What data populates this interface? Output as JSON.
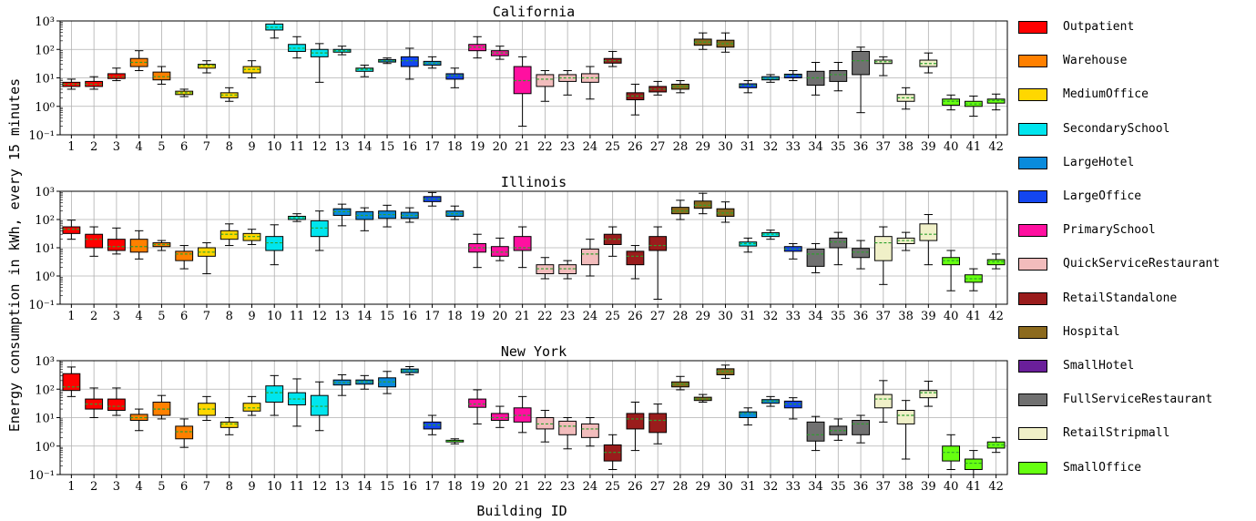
{
  "chart_data": {
    "type": "box",
    "ylabel": "Energy consumption in kWh, every 15 minutes",
    "xlabel": "Building ID",
    "yscale": "log",
    "ylim": [
      0.1,
      1000
    ],
    "y_tick_labels": [
      "10⁻¹",
      "10⁰",
      "10¹",
      "10²",
      "10³"
    ],
    "grid": true,
    "legend_position": "right",
    "x_categories": [
      "1",
      "2",
      "3",
      "4",
      "5",
      "6",
      "7",
      "8",
      "9",
      "10",
      "11",
      "12",
      "13",
      "14",
      "15",
      "16",
      "17",
      "18",
      "19",
      "20",
      "21",
      "22",
      "23",
      "24",
      "25",
      "26",
      "27",
      "28",
      "29",
      "30",
      "31",
      "32",
      "33",
      "34",
      "35",
      "36",
      "37",
      "38",
      "39",
      "40",
      "41",
      "42"
    ],
    "legend": [
      {
        "label": "Outpatient",
        "color": "#ff0000"
      },
      {
        "label": "Warehouse",
        "color": "#ff8000"
      },
      {
        "label": "MediumOffice",
        "color": "#ffd700"
      },
      {
        "label": "SecondarySchool",
        "color": "#00e5ee"
      },
      {
        "label": "LargeHotel",
        "color": "#0a8bdc"
      },
      {
        "label": "LargeOffice",
        "color": "#1346f0"
      },
      {
        "label": "PrimarySchool",
        "color": "#ff10a0"
      },
      {
        "label": "QuickServiceRestaurant",
        "color": "#f2bcbc"
      },
      {
        "label": "RetailStandalone",
        "color": "#9a1c1c"
      },
      {
        "label": "Hospital",
        "color": "#8c6a1e"
      },
      {
        "label": "SmallHotel",
        "color": "#6a1f9a"
      },
      {
        "label": "FullServiceRestaurant",
        "color": "#707070"
      },
      {
        "label": "RetailStripmall",
        "color": "#f0f0c8"
      },
      {
        "label": "SmallOffice",
        "color": "#66ff10"
      }
    ],
    "panels": [
      {
        "title": "California",
        "types": [
          0,
          0,
          0,
          1,
          1,
          2,
          2,
          2,
          2,
          3,
          3,
          3,
          3,
          3,
          4,
          5,
          4,
          5,
          6,
          6,
          6,
          7,
          7,
          7,
          8,
          8,
          8,
          9,
          9,
          9,
          5,
          4,
          5,
          11,
          11,
          11,
          12,
          12,
          12,
          13,
          13,
          13
        ],
        "boxes": [
          [
            4,
            5,
            6,
            7,
            9
          ],
          [
            4,
            5,
            6,
            7.5,
            11
          ],
          [
            8,
            9.5,
            11,
            14,
            22
          ],
          [
            18,
            25,
            35,
            48,
            90
          ],
          [
            6,
            8.5,
            11,
            16,
            25
          ],
          [
            2.2,
            2.6,
            3,
            3.4,
            4
          ],
          [
            15,
            22,
            27,
            30,
            40
          ],
          [
            1.5,
            2,
            2.5,
            3,
            4.5
          ],
          [
            10,
            15,
            20,
            25,
            40
          ],
          [
            250,
            480,
            600,
            780,
            1000
          ],
          [
            50,
            85,
            110,
            150,
            280
          ],
          [
            7,
            55,
            75,
            100,
            160
          ],
          [
            65,
            80,
            90,
            100,
            130
          ],
          [
            11,
            17,
            20,
            22,
            28
          ],
          [
            32,
            36,
            40,
            44,
            50
          ],
          [
            9,
            25,
            40,
            55,
            110
          ],
          [
            22,
            28,
            33,
            38,
            55
          ],
          [
            4.5,
            9,
            12,
            14,
            22
          ],
          [
            50,
            90,
            120,
            150,
            280
          ],
          [
            45,
            60,
            75,
            90,
            130
          ],
          [
            0.2,
            2.8,
            8,
            25,
            55
          ],
          [
            1.5,
            5,
            9,
            13,
            18
          ],
          [
            2.5,
            7.5,
            10,
            13,
            18
          ],
          [
            1.8,
            7,
            10,
            14,
            25
          ],
          [
            25,
            33,
            40,
            48,
            85
          ],
          [
            0.5,
            1.7,
            2.3,
            3,
            6
          ],
          [
            2.5,
            3.2,
            4,
            5,
            7.5
          ],
          [
            3,
            4,
            5,
            6,
            8
          ],
          [
            100,
            140,
            180,
            230,
            380
          ],
          [
            80,
            120,
            160,
            210,
            380
          ],
          [
            3,
            4.5,
            5.5,
            6.2,
            8
          ],
          [
            7,
            8.5,
            9.5,
            11,
            13
          ],
          [
            8,
            10,
            12,
            13.5,
            18
          ],
          [
            2.5,
            5.5,
            10,
            17,
            35
          ],
          [
            3.5,
            7.5,
            13,
            18,
            35
          ],
          [
            0.6,
            13,
            40,
            85,
            120
          ],
          [
            12,
            32,
            37,
            42,
            55
          ],
          [
            0.8,
            1.5,
            2,
            2.6,
            4.5
          ],
          [
            15,
            25,
            32,
            42,
            75
          ],
          [
            0.75,
            1.1,
            1.5,
            1.8,
            2.5
          ],
          [
            0.45,
            1,
            1.2,
            1.5,
            2.3
          ],
          [
            0.75,
            1.3,
            1.6,
            1.8,
            2.7
          ]
        ]
      },
      {
        "title": "Illinois",
        "types": [
          0,
          0,
          0,
          1,
          1,
          1,
          2,
          2,
          2,
          3,
          3,
          3,
          4,
          4,
          4,
          4,
          5,
          4,
          6,
          6,
          6,
          7,
          7,
          7,
          8,
          8,
          8,
          9,
          9,
          9,
          3,
          3,
          5,
          11,
          11,
          11,
          12,
          12,
          12,
          13,
          13,
          13
        ],
        "boxes": [
          [
            20,
            32,
            45,
            55,
            95
          ],
          [
            5,
            10,
            20,
            30,
            55
          ],
          [
            6,
            8,
            11,
            20,
            50
          ],
          [
            4,
            7,
            11,
            20,
            40
          ],
          [
            8,
            11,
            13,
            15,
            18
          ],
          [
            1.8,
            3.5,
            6,
            7.5,
            12
          ],
          [
            1.2,
            5,
            7,
            10,
            15
          ],
          [
            12,
            20,
            30,
            40,
            70
          ],
          [
            13,
            18,
            25,
            32,
            45
          ],
          [
            2.5,
            8,
            15,
            25,
            65
          ],
          [
            85,
            100,
            115,
            130,
            160
          ],
          [
            8,
            25,
            50,
            90,
            200
          ],
          [
            60,
            140,
            190,
            240,
            350
          ],
          [
            40,
            100,
            140,
            190,
            260
          ],
          [
            55,
            110,
            150,
            200,
            320
          ],
          [
            80,
            110,
            140,
            180,
            260
          ],
          [
            300,
            430,
            530,
            650,
            900
          ],
          [
            100,
            130,
            160,
            200,
            300
          ],
          [
            2,
            7,
            10,
            14,
            30
          ],
          [
            3.5,
            5,
            7,
            11,
            22
          ],
          [
            2,
            8,
            10,
            25,
            55
          ],
          [
            0.8,
            1.2,
            1.8,
            2.5,
            4.5
          ],
          [
            0.8,
            1.2,
            1.8,
            2.5,
            3.5
          ],
          [
            1,
            2.5,
            6,
            9,
            20
          ],
          [
            5,
            13,
            20,
            30,
            55
          ],
          [
            0.8,
            2.5,
            5,
            7.5,
            12
          ],
          [
            0.15,
            8,
            12,
            25,
            55
          ],
          [
            100,
            160,
            200,
            270,
            480
          ],
          [
            160,
            250,
            320,
            450,
            850
          ],
          [
            80,
            130,
            170,
            240,
            420
          ],
          [
            7,
            11.5,
            14,
            16,
            22
          ],
          [
            20,
            25,
            30,
            34,
            42
          ],
          [
            4,
            7.5,
            9,
            11,
            14
          ],
          [
            1.3,
            2.2,
            6,
            9,
            14
          ],
          [
            2.5,
            10,
            16,
            22,
            35
          ],
          [
            1.8,
            4.5,
            7,
            9.5,
            18
          ],
          [
            0.5,
            3.5,
            15,
            25,
            55
          ],
          [
            8,
            14,
            18,
            22,
            35
          ],
          [
            2.5,
            18,
            30,
            70,
            150
          ],
          [
            0.3,
            2.5,
            3.5,
            4.5,
            8
          ],
          [
            0.3,
            0.6,
            0.8,
            1.1,
            1.8
          ],
          [
            1.8,
            2.5,
            3.2,
            3.8,
            6
          ]
        ]
      },
      {
        "title": "New York",
        "types": [
          0,
          0,
          0,
          1,
          1,
          1,
          2,
          2,
          2,
          3,
          3,
          3,
          4,
          4,
          4,
          4,
          5,
          13,
          6,
          6,
          6,
          7,
          7,
          7,
          8,
          8,
          8,
          9,
          9,
          9,
          4,
          4,
          5,
          11,
          11,
          11,
          12,
          12,
          12,
          13,
          13,
          13
        ],
        "boxes": [
          [
            55,
            90,
            120,
            350,
            600
          ],
          [
            10,
            20,
            30,
            45,
            110
          ],
          [
            12,
            18,
            25,
            45,
            110
          ],
          [
            3.5,
            8,
            10,
            13,
            20
          ],
          [
            9,
            12,
            20,
            35,
            60
          ],
          [
            0.9,
            1.8,
            3.2,
            5,
            9
          ],
          [
            8,
            12,
            20,
            32,
            55
          ],
          [
            2.5,
            4.5,
            6,
            7,
            10
          ],
          [
            12,
            17,
            22,
            32,
            55
          ],
          [
            12,
            35,
            75,
            130,
            300
          ],
          [
            5,
            28,
            45,
            75,
            230
          ],
          [
            3.5,
            12,
            25,
            60,
            180
          ],
          [
            60,
            140,
            170,
            210,
            320
          ],
          [
            100,
            150,
            180,
            210,
            300
          ],
          [
            70,
            120,
            180,
            250,
            420
          ],
          [
            320,
            380,
            440,
            510,
            620
          ],
          [
            2.5,
            4,
            5.5,
            7,
            12
          ],
          [
            1.2,
            1.4,
            1.5,
            1.6,
            1.8
          ],
          [
            6,
            23,
            30,
            45,
            95
          ],
          [
            4.5,
            8,
            10,
            14,
            25
          ],
          [
            3,
            7,
            12,
            22,
            55
          ],
          [
            1.4,
            4,
            6,
            10,
            18
          ],
          [
            0.8,
            2.5,
            5,
            7.5,
            10
          ],
          [
            1,
            2,
            4,
            6,
            10
          ],
          [
            0.15,
            0.3,
            0.6,
            1.1,
            2.5
          ],
          [
            0.7,
            4,
            9,
            14,
            35
          ],
          [
            1.2,
            3,
            8,
            14,
            30
          ],
          [
            95,
            120,
            150,
            180,
            280
          ],
          [
            35,
            40,
            45,
            52,
            65
          ],
          [
            240,
            320,
            420,
            520,
            700
          ],
          [
            5.5,
            10,
            14,
            16,
            22
          ],
          [
            25,
            32,
            38,
            43,
            55
          ],
          [
            9,
            22,
            30,
            38,
            50
          ],
          [
            0.7,
            1.5,
            2.5,
            7,
            11
          ],
          [
            1.6,
            2.5,
            3.5,
            5,
            9
          ],
          [
            1.3,
            2.5,
            6,
            8,
            12
          ],
          [
            7,
            22,
            45,
            65,
            200
          ],
          [
            0.35,
            6,
            12,
            18,
            40
          ],
          [
            25,
            50,
            75,
            90,
            190
          ],
          [
            0.15,
            0.3,
            0.6,
            1,
            2.5
          ],
          [
            0.1,
            0.15,
            0.25,
            0.35,
            0.7
          ],
          [
            0.6,
            0.85,
            1.1,
            1.4,
            2
          ]
        ]
      }
    ]
  }
}
